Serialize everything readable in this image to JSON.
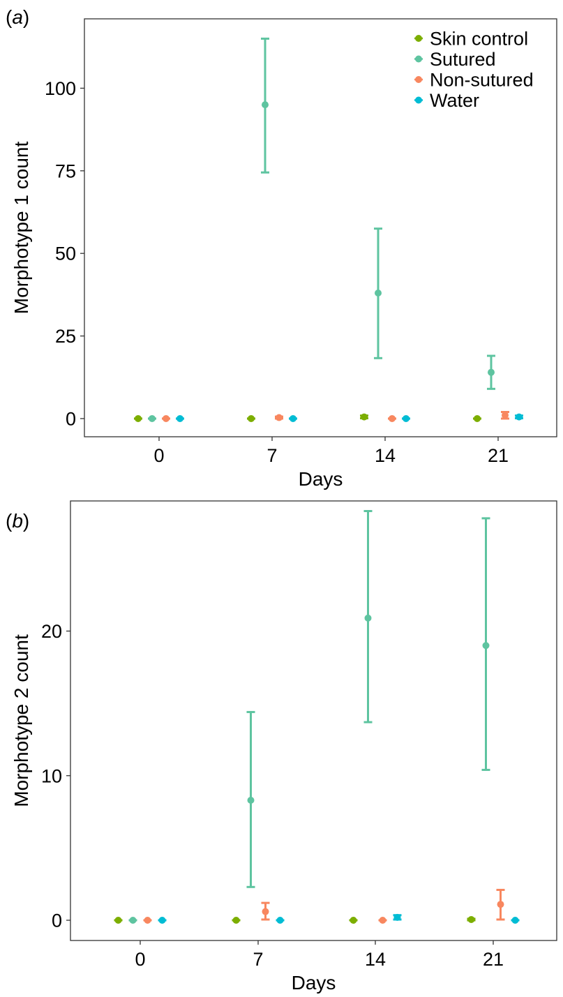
{
  "chart_data": [
    {
      "type": "scatter",
      "panel_label": "a",
      "xlabel": "Days",
      "ylabel": "Morphotype 1 count",
      "categories": [
        "0",
        "7",
        "14",
        "21"
      ],
      "ylim": [
        -5.5,
        121
      ],
      "yticks": [
        0,
        25,
        50,
        75,
        100
      ],
      "grid": false,
      "legend_position": "top-right",
      "series": [
        {
          "name": "Skin control",
          "color": "#7CAE00",
          "values": [
            0,
            0,
            0.5,
            0
          ],
          "lower": [
            0,
            0,
            0.1,
            0
          ],
          "upper": [
            0,
            0,
            0.9,
            0
          ]
        },
        {
          "name": "Sutured",
          "color": "#5EC4A0",
          "values": [
            0,
            95,
            38,
            14
          ],
          "lower": [
            0,
            74.5,
            18.3,
            9
          ],
          "upper": [
            0,
            115,
            57.5,
            19
          ]
        },
        {
          "name": "Non-sutured",
          "color": "#F8875F",
          "values": [
            0,
            0.3,
            0,
            1
          ],
          "lower": [
            0,
            0,
            0,
            0
          ],
          "upper": [
            0,
            0.6,
            0,
            2
          ]
        },
        {
          "name": "Water",
          "color": "#00BCD4",
          "values": [
            0,
            0,
            0,
            0.5
          ],
          "lower": [
            0,
            0,
            0,
            0.1
          ],
          "upper": [
            0,
            0,
            0,
            0.9
          ]
        }
      ]
    },
    {
      "type": "scatter",
      "panel_label": "b",
      "xlabel": "Days",
      "ylabel": "Morphotype 2 count",
      "categories": [
        "0",
        "7",
        "14",
        "21"
      ],
      "ylim": [
        -1.4,
        29
      ],
      "yticks": [
        0,
        10,
        20
      ],
      "grid": false,
      "legend_position": "none",
      "series": [
        {
          "name": "Skin control",
          "color": "#7CAE00",
          "values": [
            0,
            0,
            0,
            0.05
          ],
          "lower": [
            0,
            0,
            0,
            0
          ],
          "upper": [
            0,
            0,
            0,
            0.1
          ]
        },
        {
          "name": "Sutured",
          "color": "#5EC4A0",
          "values": [
            0,
            8.3,
            20.9,
            19
          ],
          "lower": [
            0,
            2.3,
            13.7,
            10.4
          ],
          "upper": [
            0,
            14.4,
            28.3,
            27.8
          ]
        },
        {
          "name": "Non-sutured",
          "color": "#F8875F",
          "values": [
            0,
            0.6,
            0,
            1.1
          ],
          "lower": [
            0,
            0.05,
            0,
            0.05
          ],
          "upper": [
            0,
            1.2,
            0,
            2.1
          ]
        },
        {
          "name": "Water",
          "color": "#00BCD4",
          "values": [
            0,
            0,
            0.2,
            0
          ],
          "lower": [
            0,
            0,
            0.05,
            0
          ],
          "upper": [
            0,
            0,
            0.35,
            0
          ]
        }
      ]
    }
  ]
}
